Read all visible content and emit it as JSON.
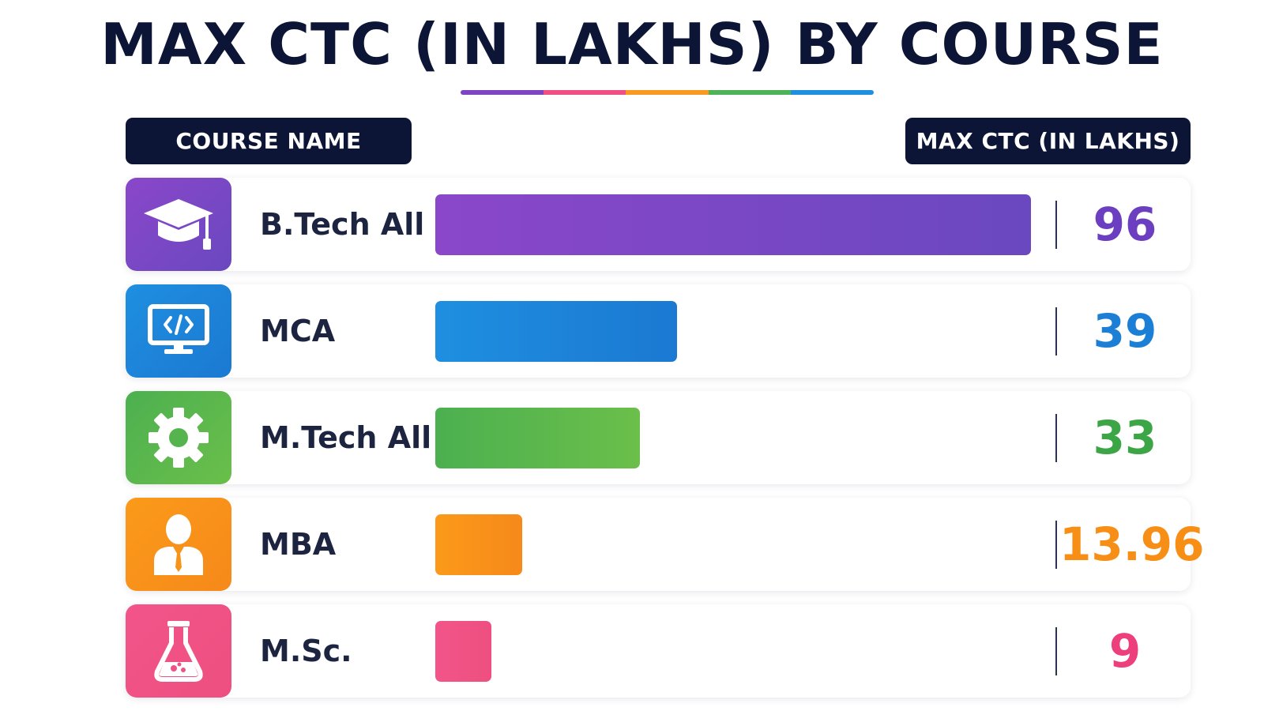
{
  "chart_data": {
    "type": "bar",
    "orientation": "horizontal",
    "title": "MAX CTC (IN LAKHS) BY COURSE",
    "category_header": "COURSE NAME",
    "value_header": "MAX CTC (IN LAKHS)",
    "categories": [
      "B.Tech All",
      "MCA",
      "M.Tech All",
      "MBA",
      "M.Sc."
    ],
    "values": [
      96,
      39,
      33,
      13.96,
      9
    ],
    "value_labels": [
      "96",
      "39",
      "33",
      "13.96",
      "9"
    ],
    "xlim": [
      0,
      96
    ],
    "grid": false,
    "legend": "none",
    "icons": [
      "graduation-cap-icon",
      "code-monitor-icon",
      "gear-icon",
      "businessman-icon",
      "flask-icon"
    ],
    "colors": [
      {
        "start": "#8a47c9",
        "end": "#6a48c0",
        "text": "#6c3fc0"
      },
      {
        "start": "#1f8fe0",
        "end": "#1b79d2",
        "text": "#1c7fd6"
      },
      {
        "start": "#4cb050",
        "end": "#6bbf4a",
        "text": "#3ca546"
      },
      {
        "start": "#fb9a1a",
        "end": "#f6891a",
        "text": "#f78e16"
      },
      {
        "start": "#f2558a",
        "end": "#ee4f80",
        "text": "#ec3f7c"
      }
    ]
  },
  "underline_colors": [
    "#7d44c4",
    "#ef4f82",
    "#f99a20",
    "#4db356",
    "#1f8fe0"
  ]
}
